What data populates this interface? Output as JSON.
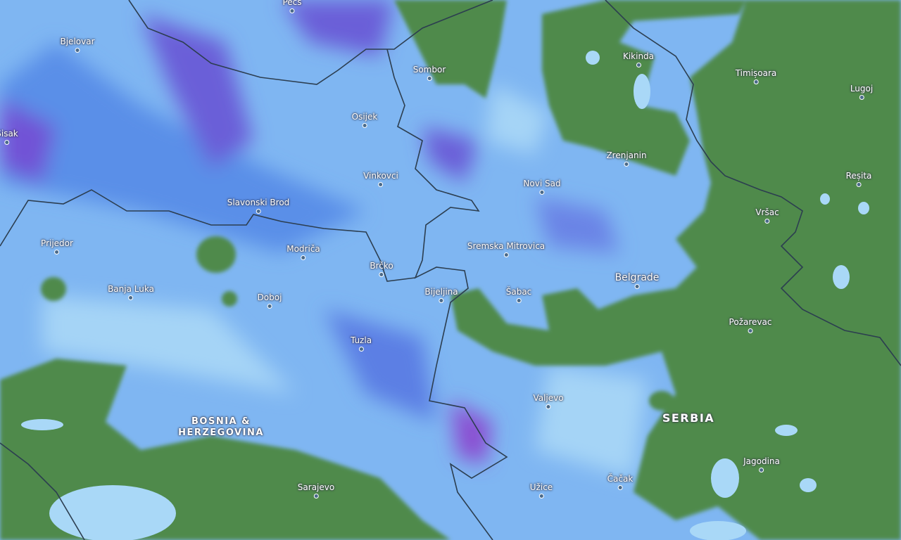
{
  "map": {
    "type": "precipitation radar",
    "colors": {
      "land": "#4f8a4c",
      "light_rain": "#a9d8f7",
      "moderate_rain": "#5b93ea",
      "heavy_rain": "#7a55d8",
      "border": "#2c3e50"
    },
    "cities": [
      "Pécs",
      "Bjelovar",
      "Sisak",
      "Sombor",
      "Kikinda",
      "Timișoara",
      "Lugoj",
      "Osijek",
      "Zrenjanin",
      "Vinkovci",
      "Novi Sad",
      "Reșita",
      "Slavonski Brod",
      "Vršac",
      "Prijedor",
      "Modriča",
      "Sremska Mitrovica",
      "Brčko",
      "Belgrade",
      "Banja Luka",
      "Doboj",
      "Bijeljina",
      "Šabac",
      "Požarevac",
      "Tuzla",
      "Valjevo",
      "Jagodina",
      "Sarajevo",
      "Užice",
      "Čačak"
    ],
    "countries": {
      "bih_line1": "BOSNIA &",
      "bih_line2": "HERZEGOVINA",
      "serbia": "SERBIA"
    }
  }
}
